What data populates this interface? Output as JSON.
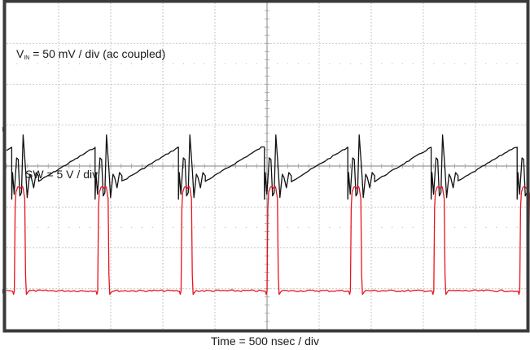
{
  "chart_data": {
    "type": "line",
    "title": "",
    "xlabel": "Time = 500 nsec / div",
    "grid": true,
    "divisions": {
      "horizontal": 10,
      "vertical": 8
    },
    "x_per_div": "500 nsec",
    "series": [
      {
        "name": "VIN",
        "label_main": "V",
        "label_sub": "IN",
        "label_rest": " = 50 mV / div (ac coupled)",
        "scale": "50 mV / div",
        "coupling": "ac",
        "color": "#111111",
        "shape": "sawtooth ramp with ringing after each switching edge",
        "period_div": 1.6,
        "edge_positions_div": [
          0.1,
          1.7,
          3.3,
          4.95,
          6.55,
          8.15,
          9.8
        ],
        "ramp_low_div": -0.6,
        "ramp_high_div": 0.5,
        "ringing_min_div": -0.65,
        "ringing_max_div": 0.6
      },
      {
        "name": "SW",
        "label": "SW = 5 V / div",
        "scale": "5 V / div",
        "color": "#e8141c",
        "shape": "pulse train",
        "period_div": 1.6,
        "rise_positions_div": [
          0.15,
          1.75,
          3.35,
          5.0,
          6.6,
          8.2,
          9.85
        ],
        "pulse_width_div": 0.2,
        "low_level_div": -3.0,
        "high_level_div": -0.5
      }
    ]
  },
  "labels": {
    "vin_main": "V",
    "vin_sub": "IN",
    "vin_rest": "= 50 mV / div (ac coupled)",
    "sw": "SW = 5 V / div",
    "time": "Time = 500 nsec / div"
  },
  "colors": {
    "frame": "#3a3a3a",
    "grid": "#b8b8b8",
    "vin_trace": "#111111",
    "sw_trace": "#e8141c",
    "sw_trace_light": "#f47a7e"
  }
}
